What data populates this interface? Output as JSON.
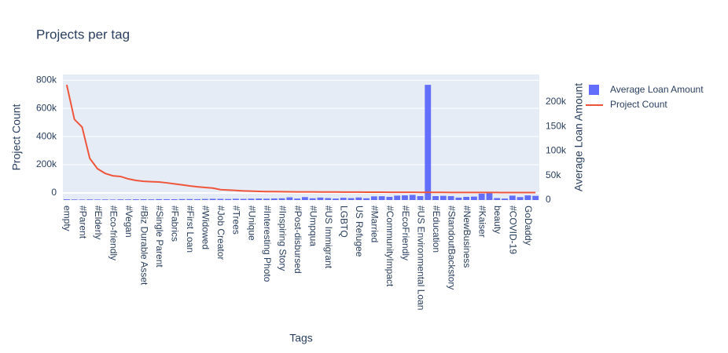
{
  "chart_data": {
    "type": "bar",
    "title": "Projects per tag",
    "xlabel": "Tags",
    "ylabel": "Project Count",
    "y2label": "Average Loan Amount",
    "categories": [
      "empty",
      null,
      "#Parent",
      null,
      "#Elderly",
      null,
      "#Eco-friendly",
      null,
      "#Vegan",
      null,
      "#Biz Durable Asset",
      null,
      "#Single Parent",
      null,
      "#Fabrics",
      null,
      "#First Loan",
      null,
      "#Widowed",
      null,
      "#Job Creator",
      null,
      "#Trees",
      null,
      "#Unique",
      null,
      "#Interesting Photo",
      null,
      "#Inspiring Story",
      null,
      "#Post-disbursed",
      null,
      "#Umpqua",
      null,
      "#US Immigrant",
      null,
      "LGBTQ",
      null,
      "US Refugee",
      null,
      "#Married",
      null,
      "#CommunityImpact",
      null,
      "#EcoFriendly",
      null,
      "#US Environmental Loan",
      null,
      "#Education",
      null,
      "#StandoutBackstory",
      null,
      "#NewBusiness",
      null,
      "#Kaiser",
      null,
      "beauty",
      null,
      "#COVID-19",
      null,
      "GoDaddy",
      null
    ],
    "series": [
      {
        "name": "Average Loan Amount",
        "type": "bar",
        "axis": "y2",
        "color": "#636efa",
        "values": [
          1500,
          1200,
          1000,
          1300,
          1100,
          1200,
          1000,
          1400,
          1300,
          1500,
          1600,
          1400,
          1800,
          1700,
          1600,
          1900,
          2000,
          1800,
          2200,
          2500,
          2400,
          2100,
          2600,
          2300,
          2800,
          3000,
          2700,
          3200,
          3500,
          5500,
          3000,
          6000,
          3500,
          5000,
          4000,
          3000,
          4500,
          3800,
          5200,
          3600,
          7500,
          7800,
          6500,
          9000,
          9500,
          10500,
          8000,
          235000,
          8000,
          8500,
          8000,
          5000,
          6500,
          7000,
          13000,
          14000,
          4000,
          3000,
          9000,
          6000,
          9500,
          8500
        ]
      },
      {
        "name": "Project Count",
        "type": "line",
        "color": "#ef553b",
        "values": [
          767000,
          522000,
          467000,
          245000,
          172000,
          139000,
          122000,
          117000,
          100000,
          89000,
          83000,
          80000,
          78000,
          72000,
          65000,
          58000,
          50000,
          44000,
          39000,
          35000,
          24000,
          21000,
          18000,
          15000,
          13000,
          11000,
          10000,
          9500,
          9000,
          8500,
          8000,
          7800,
          7500,
          7200,
          7000,
          6800,
          6500,
          6300,
          6000,
          5800,
          5600,
          5400,
          5200,
          5000,
          4800,
          4600,
          4400,
          4200,
          4000,
          3900,
          3800,
          3700,
          3600,
          3500,
          3400,
          3300,
          3200,
          3100,
          3000,
          2900,
          2800,
          2700
        ]
      }
    ],
    "ylim": [
      -50000,
      840000
    ],
    "yticks": [
      0,
      {
        "value": 200000,
        "label": "200k"
      },
      {
        "value": 400000,
        "label": "400k"
      },
      {
        "value": 600000,
        "label": "600k"
      },
      {
        "value": 800000,
        "label": "800k"
      }
    ],
    "y2lim": [
      0,
      256000
    ],
    "y2ticks": [
      0,
      {
        "value": 50000,
        "label": "50k"
      },
      {
        "value": 100000,
        "label": "100k"
      },
      {
        "value": 150000,
        "label": "150k"
      },
      {
        "value": 200000,
        "label": "200k"
      }
    ],
    "grid": true,
    "legend": "top-right"
  }
}
